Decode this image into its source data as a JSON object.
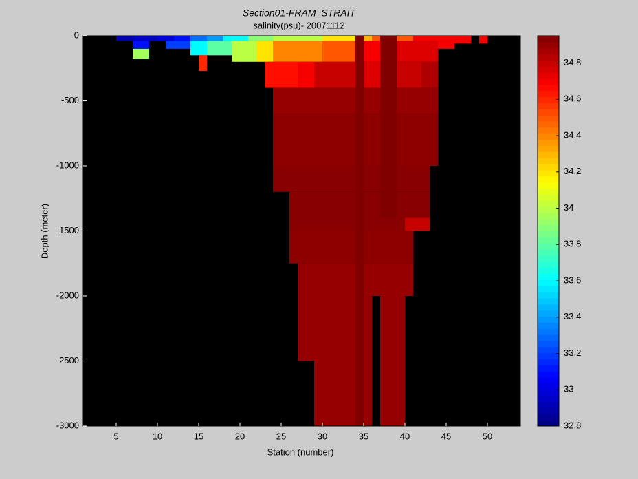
{
  "chart_data": {
    "type": "section",
    "title": "Section01-FRAM_STRAIT",
    "subtitle": "salinity(psu)- 20071112",
    "x_label": "Station (number)",
    "y_label": "Depth (meter)",
    "xlim": [
      1,
      54
    ],
    "xticks": [
      5,
      10,
      15,
      20,
      25,
      30,
      35,
      40,
      45,
      50
    ],
    "ylim": [
      -3000,
      0
    ],
    "yticks": [
      0,
      -500,
      -1000,
      -1500,
      -2000,
      -2500,
      -3000
    ],
    "clim": [
      32.8,
      34.95
    ],
    "cticks": [
      32.8,
      33,
      33.2,
      33.4,
      33.6,
      33.8,
      34,
      34.2,
      34.4,
      34.6,
      34.8
    ],
    "colormap": "jet",
    "background": "#000000",
    "cells": [
      {
        "x": [
          5,
          7
        ],
        "depth": [
          0,
          -40
        ],
        "value": 32.9
      },
      {
        "x": [
          7,
          10
        ],
        "depth": [
          0,
          -40
        ],
        "value": 32.95
      },
      {
        "x": [
          10,
          12
        ],
        "depth": [
          0,
          -40
        ],
        "value": 33.0
      },
      {
        "x": [
          12,
          14
        ],
        "depth": [
          0,
          -40
        ],
        "value": 33.1
      },
      {
        "x": [
          14,
          16
        ],
        "depth": [
          0,
          -40
        ],
        "value": 33.3
      },
      {
        "x": [
          16,
          18
        ],
        "depth": [
          0,
          -40
        ],
        "value": 33.4
      },
      {
        "x": [
          18,
          21
        ],
        "depth": [
          0,
          -40
        ],
        "value": 33.6
      },
      {
        "x": [
          21,
          24
        ],
        "depth": [
          0,
          -40
        ],
        "value": 33.9
      },
      {
        "x": [
          24,
          30
        ],
        "depth": [
          0,
          -40
        ],
        "value": 34.0
      },
      {
        "x": [
          30,
          34
        ],
        "depth": [
          0,
          -40
        ],
        "value": 34.2
      },
      {
        "x": [
          35,
          36
        ],
        "depth": [
          0,
          -40
        ],
        "value": 34.3
      },
      {
        "x": [
          36,
          37
        ],
        "depth": [
          0,
          -40
        ],
        "value": 34.5
      },
      {
        "x": [
          39,
          41
        ],
        "depth": [
          0,
          -40
        ],
        "value": 34.5
      },
      {
        "x": [
          41,
          48
        ],
        "depth": [
          0,
          -40
        ],
        "value": 34.7
      },
      {
        "x": [
          49,
          50
        ],
        "depth": [
          0,
          -60
        ],
        "value": 34.7
      },
      {
        "x": [
          7,
          9
        ],
        "depth": [
          -40,
          -100
        ],
        "value": 33.1
      },
      {
        "x": [
          7,
          9
        ],
        "depth": [
          -100,
          -180
        ],
        "value": 33.95
      },
      {
        "x": [
          11,
          14
        ],
        "depth": [
          -40,
          -100
        ],
        "value": 33.2
      },
      {
        "x": [
          14,
          16
        ],
        "depth": [
          -40,
          -150
        ],
        "value": 33.6
      },
      {
        "x": [
          15,
          16
        ],
        "depth": [
          -150,
          -270
        ],
        "value": 34.6
      },
      {
        "x": [
          16,
          19
        ],
        "depth": [
          -40,
          -150
        ],
        "value": 33.8
      },
      {
        "x": [
          19,
          22
        ],
        "depth": [
          -40,
          -200
        ],
        "value": 34.0
      },
      {
        "x": [
          22,
          24
        ],
        "depth": [
          -40,
          -200
        ],
        "value": 34.2
      },
      {
        "x": [
          24,
          30
        ],
        "depth": [
          -40,
          -200
        ],
        "value": 34.4
      },
      {
        "x": [
          30,
          34
        ],
        "depth": [
          -40,
          -200
        ],
        "value": 34.5
      },
      {
        "x": [
          35,
          37
        ],
        "depth": [
          -40,
          -200
        ],
        "value": 34.7
      },
      {
        "x": [
          39,
          44
        ],
        "depth": [
          -40,
          -200
        ],
        "value": 34.75
      },
      {
        "x": [
          44,
          46
        ],
        "depth": [
          -40,
          -100
        ],
        "value": 34.7
      },
      {
        "x": [
          46,
          48
        ],
        "depth": [
          -40,
          -60
        ],
        "value": 34.7
      },
      {
        "x": [
          23,
          27
        ],
        "depth": [
          -200,
          -400
        ],
        "value": 34.65
      },
      {
        "x": [
          27,
          29
        ],
        "depth": [
          -200,
          -400
        ],
        "value": 34.7
      },
      {
        "x": [
          29,
          34
        ],
        "depth": [
          -200,
          -400
        ],
        "value": 34.8
      },
      {
        "x": [
          35,
          37
        ],
        "depth": [
          -200,
          -400
        ],
        "value": 34.75
      },
      {
        "x": [
          39,
          42
        ],
        "depth": [
          -200,
          -400
        ],
        "value": 34.8
      },
      {
        "x": [
          42,
          44
        ],
        "depth": [
          -200,
          -400
        ],
        "value": 34.85
      },
      {
        "x": [
          24,
          44
        ],
        "depth": [
          -400,
          -600
        ],
        "value": 34.9
      },
      {
        "x": [
          24,
          44
        ],
        "depth": [
          -600,
          -1000
        ],
        "value": 34.92
      },
      {
        "x": [
          24,
          43
        ],
        "depth": [
          -1000,
          -1200
        ],
        "value": 34.93
      },
      {
        "x": [
          26,
          43
        ],
        "depth": [
          -1200,
          -1500
        ],
        "value": 34.93
      },
      {
        "x": [
          40,
          43
        ],
        "depth": [
          -1400,
          -1500
        ],
        "value": 34.8
      },
      {
        "x": [
          26,
          41
        ],
        "depth": [
          -1500,
          -1750
        ],
        "value": 34.92
      },
      {
        "x": [
          27,
          41
        ],
        "depth": [
          -1750,
          -2000
        ],
        "value": 34.9
      },
      {
        "x": [
          27,
          36
        ],
        "depth": [
          -2000,
          -2500
        ],
        "value": 34.9
      },
      {
        "x": [
          37,
          40
        ],
        "depth": [
          -2000,
          -2500
        ],
        "value": 34.9
      },
      {
        "x": [
          29,
          36
        ],
        "depth": [
          -2500,
          -3000
        ],
        "value": 34.9
      },
      {
        "x": [
          37,
          40
        ],
        "depth": [
          -2500,
          -3000
        ],
        "value": 34.9
      },
      {
        "x": [
          34,
          35
        ],
        "depth": [
          0,
          -3000
        ],
        "value": 34.95
      },
      {
        "x": [
          37,
          39
        ],
        "depth": [
          0,
          -1400
        ],
        "value": 34.95
      }
    ]
  }
}
